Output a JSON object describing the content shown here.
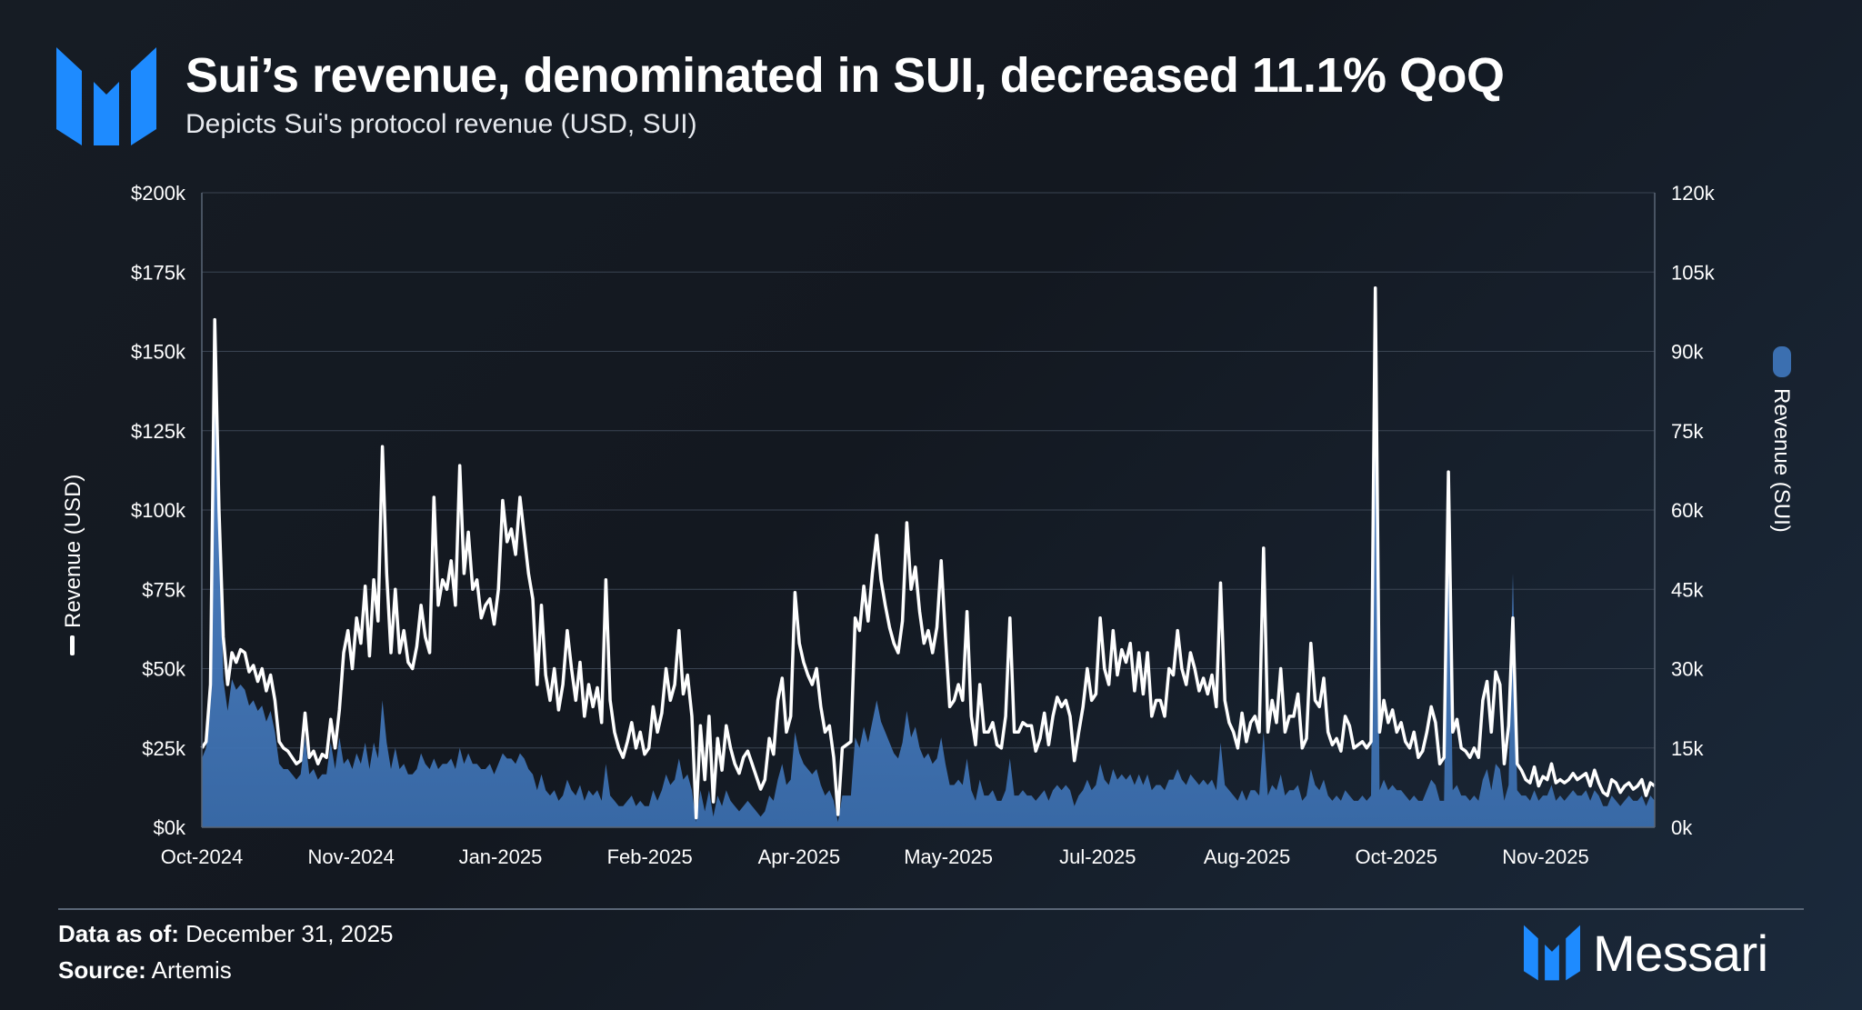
{
  "header": {
    "title": "Sui’s revenue, denominated in SUI, decreased 11.1% QoQ",
    "subtitle": "Depicts Sui's protocol revenue (USD, SUI)"
  },
  "footer": {
    "as_of_label": "Data as of:",
    "as_of_value": "December 31, 2025",
    "source_label": "Source:",
    "source_value": "Artemis",
    "brand_name": "Messari"
  },
  "colors": {
    "usd_line": "#ffffff",
    "sui_area": "#3b6fb0",
    "brand_blue": "#1e8bff",
    "grid": "#3a4452"
  },
  "chart_data": {
    "type": "line",
    "title": "Sui’s revenue, denominated in SUI, decreased 11.1% QoQ",
    "subtitle": "Depicts Sui's protocol revenue (USD, SUI)",
    "xlabel": "",
    "ylabel": "Revenue (USD)",
    "y2label": "Revenue (SUI)",
    "ylim": [
      0,
      200000
    ],
    "y2lim": [
      0,
      120000
    ],
    "y_ticks": [
      "$0k",
      "$25k",
      "$50k",
      "$75k",
      "$100k",
      "$125k",
      "$150k",
      "$175k",
      "$200k"
    ],
    "y2_ticks": [
      "0k",
      "15k",
      "30k",
      "45k",
      "60k",
      "75k",
      "90k",
      "105k",
      "120k"
    ],
    "x_ticks": [
      "Oct-2024",
      "Nov-2024",
      "Jan-2025",
      "Feb-2025",
      "Apr-2025",
      "May-2025",
      "Jul-2025",
      "Aug-2025",
      "Oct-2025",
      "Nov-2025"
    ],
    "legend": [
      "Revenue (USD)",
      "Revenue (SUI)"
    ],
    "legend_placement": "axis-titles",
    "series": [
      {
        "name": "Revenue (USD)",
        "type": "line",
        "axis": "left",
        "values": [
          25000,
          27000,
          45000,
          160000,
          100000,
          60000,
          45000,
          55000,
          52000,
          56000,
          55000,
          49000,
          51000,
          46000,
          50000,
          43000,
          48000,
          40000,
          27000,
          25000,
          24000,
          22000,
          20000,
          21000,
          36000,
          22000,
          24000,
          20000,
          23000,
          22000,
          34000,
          25000,
          37000,
          55000,
          62000,
          50000,
          66000,
          58000,
          76000,
          54000,
          78000,
          65000,
          120000,
          80000,
          55000,
          75000,
          55000,
          62000,
          52000,
          50000,
          57000,
          70000,
          60000,
          55000,
          104000,
          70000,
          78000,
          75000,
          84000,
          70000,
          114000,
          80000,
          93000,
          75000,
          78000,
          66000,
          70000,
          72000,
          64000,
          75000,
          103000,
          90000,
          94000,
          86000,
          104000,
          92000,
          80000,
          72000,
          45000,
          70000,
          48000,
          40000,
          50000,
          37000,
          45000,
          62000,
          50000,
          40000,
          52000,
          35000,
          45000,
          38000,
          44000,
          33000,
          78000,
          40000,
          30000,
          25000,
          22000,
          27000,
          33000,
          25000,
          30000,
          23000,
          25000,
          38000,
          30000,
          36000,
          50000,
          40000,
          45000,
          62000,
          42000,
          48000,
          35000,
          3000,
          32000,
          15000,
          35000,
          8000,
          28000,
          18000,
          32000,
          25000,
          20000,
          17000,
          22000,
          24000,
          20000,
          16000,
          12000,
          15000,
          28000,
          23000,
          40000,
          47000,
          30000,
          35000,
          74000,
          58000,
          52000,
          48000,
          45000,
          50000,
          38000,
          30000,
          32000,
          22000,
          4000,
          25000,
          26000,
          27000,
          66000,
          62000,
          76000,
          65000,
          80000,
          92000,
          78000,
          70000,
          63000,
          58000,
          55000,
          65000,
          96000,
          75000,
          82000,
          68000,
          58000,
          62000,
          55000,
          63000,
          84000,
          60000,
          38000,
          40000,
          45000,
          40000,
          68000,
          35000,
          26000,
          45000,
          30000,
          30000,
          33000,
          26000,
          25000,
          35000,
          66000,
          30000,
          30000,
          33000,
          32000,
          32000,
          24000,
          28000,
          36000,
          26000,
          35000,
          41000,
          38000,
          40000,
          35000,
          21000,
          30000,
          38000,
          50000,
          40000,
          42000,
          66000,
          50000,
          45000,
          62000,
          48000,
          56000,
          52000,
          58000,
          43000,
          55000,
          42000,
          55000,
          35000,
          40000,
          40000,
          35000,
          50000,
          48000,
          62000,
          50000,
          45000,
          55000,
          50000,
          43000,
          47000,
          42000,
          48000,
          38000,
          77000,
          40000,
          33000,
          30000,
          25000,
          36000,
          27000,
          33000,
          35000,
          30000,
          88000,
          30000,
          40000,
          33000,
          50000,
          30000,
          35000,
          35000,
          42000,
          25000,
          28000,
          58000,
          40000,
          38000,
          47000,
          30000,
          26000,
          28000,
          24000,
          35000,
          32000,
          25000,
          26000,
          27000,
          25000,
          27000,
          170000,
          30000,
          40000,
          33000,
          37000,
          30000,
          33000,
          27000,
          25000,
          30000,
          22000,
          24000,
          30000,
          38000,
          33000,
          20000,
          22000,
          112000,
          30000,
          34000,
          25000,
          24000,
          22000,
          25000,
          22000,
          40000,
          46000,
          30000,
          49000,
          45000,
          20000,
          32000,
          66000,
          20000,
          18000,
          15000,
          14000,
          19000,
          13000,
          16000,
          15000,
          20000,
          14000,
          15000,
          14000,
          15000,
          17000,
          15000,
          16000,
          17000,
          13000,
          18000,
          14000,
          11000,
          10000,
          15000,
          14000,
          11000,
          13000,
          14000,
          12000,
          13000,
          15000,
          10000,
          14000,
          13000
        ]
      },
      {
        "name": "Revenue (SUI)",
        "type": "area",
        "axis": "right",
        "values": [
          13000,
          15000,
          27000,
          96000,
          60000,
          28000,
          22000,
          28000,
          26000,
          27000,
          26000,
          23000,
          24000,
          22000,
          23000,
          20000,
          22000,
          18000,
          12000,
          11000,
          11000,
          10000,
          9000,
          10000,
          17000,
          10000,
          11000,
          9000,
          10000,
          10000,
          16000,
          11000,
          17000,
          12000,
          13000,
          11000,
          14000,
          12000,
          16000,
          11000,
          16000,
          13000,
          24000,
          16000,
          11000,
          15000,
          11000,
          12000,
          10000,
          10000,
          11000,
          14000,
          12000,
          11000,
          13000,
          11000,
          12000,
          12000,
          13000,
          11000,
          15000,
          12000,
          14000,
          12000,
          12000,
          11000,
          11000,
          12000,
          10000,
          12000,
          14000,
          13000,
          13000,
          12000,
          14000,
          13000,
          11000,
          10000,
          7000,
          10000,
          7000,
          6000,
          7000,
          5000,
          6000,
          9000,
          7000,
          6000,
          8000,
          5000,
          7000,
          6000,
          7000,
          5000,
          12000,
          6000,
          5000,
          4000,
          4000,
          5000,
          6000,
          4000,
          5000,
          4000,
          4000,
          7000,
          5000,
          7000,
          10000,
          8000,
          9000,
          13000,
          9000,
          10000,
          7000,
          1000,
          7000,
          3000,
          7000,
          2000,
          6000,
          4000,
          7000,
          5000,
          4000,
          3000,
          4000,
          5000,
          4000,
          3000,
          2000,
          3000,
          6000,
          5000,
          9000,
          12000,
          8000,
          9000,
          18000,
          14000,
          12000,
          11000,
          10000,
          11000,
          8000,
          6000,
          7000,
          5000,
          1000,
          6000,
          6000,
          6000,
          17000,
          15000,
          19000,
          16000,
          20000,
          24000,
          20000,
          18000,
          16000,
          14000,
          13000,
          16000,
          22000,
          17000,
          19000,
          15000,
          13000,
          14000,
          12000,
          13000,
          17000,
          12000,
          8000,
          8000,
          9000,
          8000,
          13000,
          7000,
          5000,
          9000,
          6000,
          6000,
          7000,
          5000,
          5000,
          7000,
          13000,
          6000,
          6000,
          7000,
          6000,
          6000,
          5000,
          6000,
          7000,
          5000,
          7000,
          8000,
          7000,
          8000,
          7000,
          4000,
          6000,
          7000,
          9000,
          7000,
          8000,
          12000,
          9000,
          8000,
          11000,
          9000,
          10000,
          9000,
          10000,
          8000,
          10000,
          8000,
          10000,
          7000,
          8000,
          8000,
          7000,
          9000,
          9000,
          11000,
          9000,
          8000,
          10000,
          9000,
          8000,
          9000,
          8000,
          9000,
          7000,
          16000,
          8000,
          7000,
          6000,
          5000,
          7000,
          5000,
          7000,
          7000,
          6000,
          18000,
          6000,
          8000,
          7000,
          10000,
          6000,
          7000,
          7000,
          8000,
          5000,
          6000,
          11000,
          8000,
          7000,
          9000,
          6000,
          5000,
          6000,
          5000,
          7000,
          6000,
          5000,
          5000,
          6000,
          5000,
          6000,
          95000,
          7000,
          9000,
          7000,
          8000,
          7000,
          7000,
          6000,
          5000,
          6000,
          5000,
          5000,
          7000,
          9000,
          8000,
          5000,
          5000,
          65000,
          7000,
          8000,
          6000,
          6000,
          5000,
          6000,
          5000,
          9000,
          11000,
          7000,
          12000,
          11000,
          5000,
          8000,
          48000,
          7000,
          6000,
          6000,
          5000,
          7000,
          5000,
          6000,
          6000,
          8000,
          5000,
          6000,
          5000,
          6000,
          7000,
          6000,
          6000,
          7000,
          5000,
          7000,
          6000,
          4000,
          4000,
          6000,
          5000,
          4000,
          5000,
          6000,
          5000,
          5000,
          6000,
          4000,
          6000,
          5000
        ]
      }
    ]
  }
}
